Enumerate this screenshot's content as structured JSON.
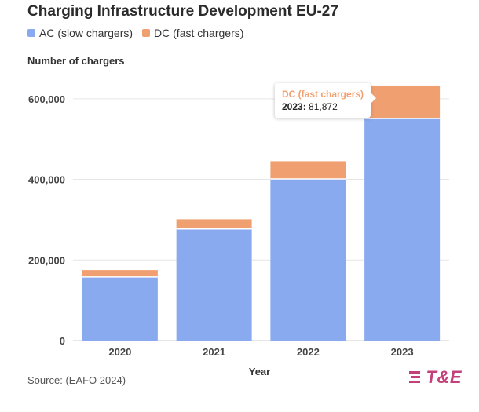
{
  "header": {
    "title": "Charging Infrastructure Development EU-27"
  },
  "legend": [
    {
      "label": "AC (slow chargers)",
      "color": "#8aaaf0"
    },
    {
      "label": "DC (fast chargers)",
      "color": "#f0a070"
    }
  ],
  "tooltip": {
    "series": "DC (fast chargers)",
    "year": "2023:",
    "value": "81,872"
  },
  "footer": {
    "source_prefix": "Source:",
    "source_link": "(EAFO 2024)",
    "logo_text": "T&E"
  },
  "chart_data": {
    "type": "bar",
    "stacked": true,
    "title": "Charging Infrastructure Development EU-27",
    "xlabel": "Year",
    "ylabel": "Number of chargers",
    "categories": [
      "2020",
      "2021",
      "2022",
      "2023"
    ],
    "series": [
      {
        "name": "AC (slow chargers)",
        "color": "#8aaaf0",
        "values": [
          158000,
          277000,
          401000,
          551000
        ]
      },
      {
        "name": "DC (fast chargers)",
        "color": "#f0a070",
        "values": [
          17000,
          24000,
          44000,
          81872
        ]
      }
    ],
    "ylim": [
      0,
      660000
    ],
    "yticks": [
      0,
      200000,
      400000,
      600000
    ],
    "ytick_labels": [
      "0",
      "200,000",
      "400,000",
      "600,000"
    ],
    "grid": true,
    "legend": "top-left"
  }
}
